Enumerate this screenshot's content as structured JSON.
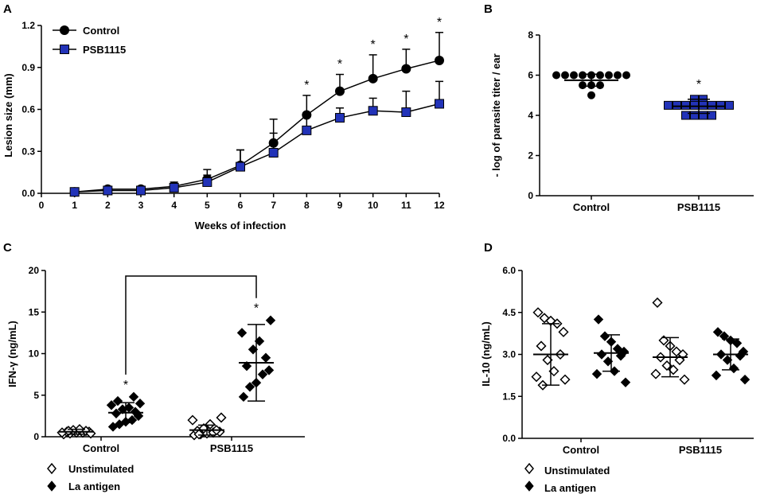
{
  "panels": {
    "A": {
      "label": "A",
      "chart_data": {
        "type": "line",
        "xlabel": "Weeks of infection",
        "ylabel": "Lesion size (mm)",
        "xlim": [
          0,
          12
        ],
        "ylim": [
          0,
          1.2
        ],
        "x_ticks": [
          "0",
          "1",
          "2",
          "3",
          "4",
          "5",
          "6",
          "7",
          "8",
          "9",
          "10",
          "11",
          "12"
        ],
        "y_ticks": [
          "0.0",
          "0.3",
          "0.6",
          "0.9",
          "1.2"
        ],
        "x": [
          1,
          2,
          3,
          4,
          5,
          6,
          7,
          8,
          9,
          10,
          11,
          12
        ],
        "series": [
          {
            "name": "Control",
            "marker": "circle",
            "color": "#000000",
            "values": [
              0.01,
              0.03,
              0.03,
              0.05,
              0.1,
              0.2,
              0.36,
              0.56,
              0.73,
              0.82,
              0.89,
              0.95
            ],
            "errors": [
              0.02,
              0.02,
              0.02,
              0.03,
              0.07,
              0.11,
              0.17,
              0.14,
              0.12,
              0.17,
              0.14,
              0.2
            ]
          },
          {
            "name": "PSB1115",
            "marker": "square",
            "color": "#2233b8",
            "values": [
              0.01,
              0.02,
              0.02,
              0.04,
              0.08,
              0.19,
              0.29,
              0.45,
              0.54,
              0.59,
              0.58,
              0.64
            ],
            "errors": [
              0.02,
              0.02,
              0.02,
              0.03,
              0.05,
              0.12,
              0.14,
              0.1,
              0.07,
              0.09,
              0.15,
              0.16
            ]
          }
        ],
        "significance": {
          "symbol": "*",
          "x": [
            8,
            9,
            10,
            11,
            12
          ]
        }
      }
    },
    "B": {
      "label": "B",
      "chart_data": {
        "type": "scatter",
        "ylabel": "- log of parasite titer / ear",
        "ylim": [
          0,
          8
        ],
        "y_ticks": [
          "0",
          "2",
          "4",
          "6",
          "8"
        ],
        "categories": [
          "Control",
          "PSB1115"
        ],
        "groups": [
          {
            "name": "Control",
            "marker": "circle",
            "color": "#000000",
            "points": [
              6,
              6,
              6,
              6,
              6,
              6,
              6,
              6,
              6,
              5.5,
              5.5,
              5.5,
              5.0
            ],
            "mean": 5.75,
            "error": 0.3
          },
          {
            "name": "PSB1115",
            "marker": "square",
            "color": "#2233b8",
            "points": [
              4.8,
              4.8,
              4.5,
              4.5,
              4.5,
              4.5,
              4.5,
              4.5,
              4.5,
              4.5,
              4.0,
              4.0,
              4.0,
              4.0
            ],
            "mean": 4.45,
            "error": 0.35,
            "significant": true
          }
        ],
        "significance": {
          "symbol": "*"
        }
      }
    },
    "C": {
      "label": "C",
      "chart_data": {
        "type": "scatter",
        "ylabel": "IFN-γ (ng/mL)",
        "ylim": [
          0,
          20
        ],
        "y_ticks": [
          "0",
          "5",
          "10",
          "15",
          "20"
        ],
        "categories": [
          "Control",
          "PSB1115"
        ],
        "legend": [
          {
            "name": "Unstimulated",
            "marker": "open-diamond"
          },
          {
            "name": "La antigen",
            "marker": "filled-diamond"
          }
        ],
        "groups": [
          {
            "category": "Control",
            "series": "Unstimulated",
            "mean": 0.6,
            "error": 0.3,
            "points": [
              0.3,
              0.4,
              0.5,
              0.5,
              0.6,
              0.6,
              0.7,
              0.8,
              0.9,
              0.5,
              0.4,
              0.7
            ]
          },
          {
            "category": "Control",
            "series": "La antigen",
            "mean": 2.9,
            "error": 1.2,
            "points": [
              1.2,
              1.5,
              1.8,
              2.0,
              2.5,
              2.8,
              3.0,
              3.3,
              3.5,
              3.8,
              4.0,
              4.3,
              4.8
            ],
            "significant": true
          },
          {
            "category": "PSB1115",
            "series": "Unstimulated",
            "mean": 0.8,
            "error": 0.6,
            "points": [
              0.2,
              0.3,
              0.4,
              0.5,
              0.6,
              0.7,
              0.8,
              1.0,
              1.5,
              2.0,
              2.3,
              0.3
            ]
          },
          {
            "category": "PSB1115",
            "series": "La antigen",
            "mean": 8.9,
            "error": 4.6,
            "points": [
              4.8,
              6.0,
              6.5,
              7.5,
              8.0,
              8.5,
              9.5,
              10.5,
              11.5,
              12.5,
              14.0
            ],
            "significant": true
          }
        ],
        "bracket": {
          "from": "Control La antigen",
          "to": "PSB1115 La antigen"
        },
        "significance": {
          "symbol": "*"
        }
      }
    },
    "D": {
      "label": "D",
      "chart_data": {
        "type": "scatter",
        "ylabel": "IL-10 (ng/mL)",
        "ylim": [
          0,
          6
        ],
        "y_ticks": [
          "0.0",
          "1.5",
          "3.0",
          "4.5",
          "6.0"
        ],
        "categories": [
          "Control",
          "PSB1115"
        ],
        "legend": [
          {
            "name": "Unstimulated",
            "marker": "open-diamond"
          },
          {
            "name": "La antigen",
            "marker": "filled-diamond"
          }
        ],
        "groups": [
          {
            "category": "Control",
            "series": "Unstimulated",
            "mean": 3.0,
            "error": 1.1,
            "points": [
              4.5,
              4.3,
              4.2,
              4.1,
              3.8,
              3.3,
              3.0,
              2.8,
              2.4,
              2.2,
              2.1,
              1.9
            ]
          },
          {
            "category": "Control",
            "series": "La antigen",
            "mean": 3.05,
            "error": 0.65,
            "points": [
              4.25,
              3.65,
              3.45,
              3.2,
              3.1,
              3.0,
              2.95,
              2.75,
              2.4,
              2.3,
              2.0
            ]
          },
          {
            "category": "PSB1115",
            "series": "Unstimulated",
            "mean": 2.9,
            "error": 0.7,
            "points": [
              4.85,
              3.5,
              3.3,
              3.1,
              3.0,
              2.9,
              2.8,
              2.6,
              2.45,
              2.3,
              2.1
            ]
          },
          {
            "category": "PSB1115",
            "series": "La antigen",
            "mean": 3.0,
            "error": 0.55,
            "points": [
              3.8,
              3.65,
              3.5,
              3.4,
              3.1,
              3.0,
              2.95,
              2.8,
              2.5,
              2.25,
              2.1
            ]
          }
        ]
      }
    }
  }
}
